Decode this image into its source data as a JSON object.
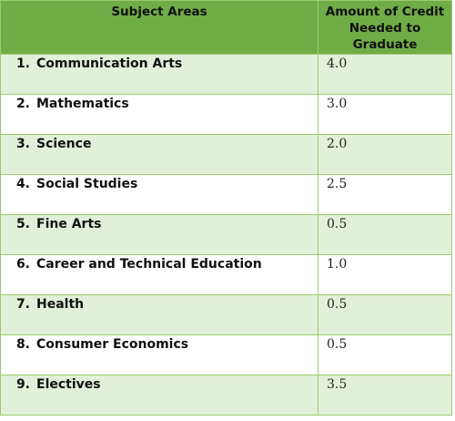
{
  "table": {
    "headers": {
      "subject": "Subject Areas",
      "amount": "Amount of Credit Needed to Graduate"
    },
    "rows": [
      {
        "number": "1.",
        "subject": "Communication Arts",
        "credit": "4.0"
      },
      {
        "number": "2.",
        "subject": "Mathematics",
        "credit": "3.0"
      },
      {
        "number": "3.",
        "subject": "Science",
        "credit": "2.0"
      },
      {
        "number": "4.",
        "subject": "Social Studies",
        "credit": "2.5"
      },
      {
        "number": "5.",
        "subject": "Fine Arts",
        "credit": "0.5"
      },
      {
        "number": "6.",
        "subject": "Career and Technical Education",
        "credit": "1.0"
      },
      {
        "number": "7.",
        "subject": "Health",
        "credit": "0.5"
      },
      {
        "number": "8.",
        "subject": "Consumer Economics",
        "credit": "0.5"
      },
      {
        "number": "9.",
        "subject": "Electives",
        "credit": "3.5"
      }
    ]
  },
  "colors": {
    "header_bg": "#70ad47",
    "band_bg": "#e2efd9",
    "border": "#9bcb6f"
  }
}
